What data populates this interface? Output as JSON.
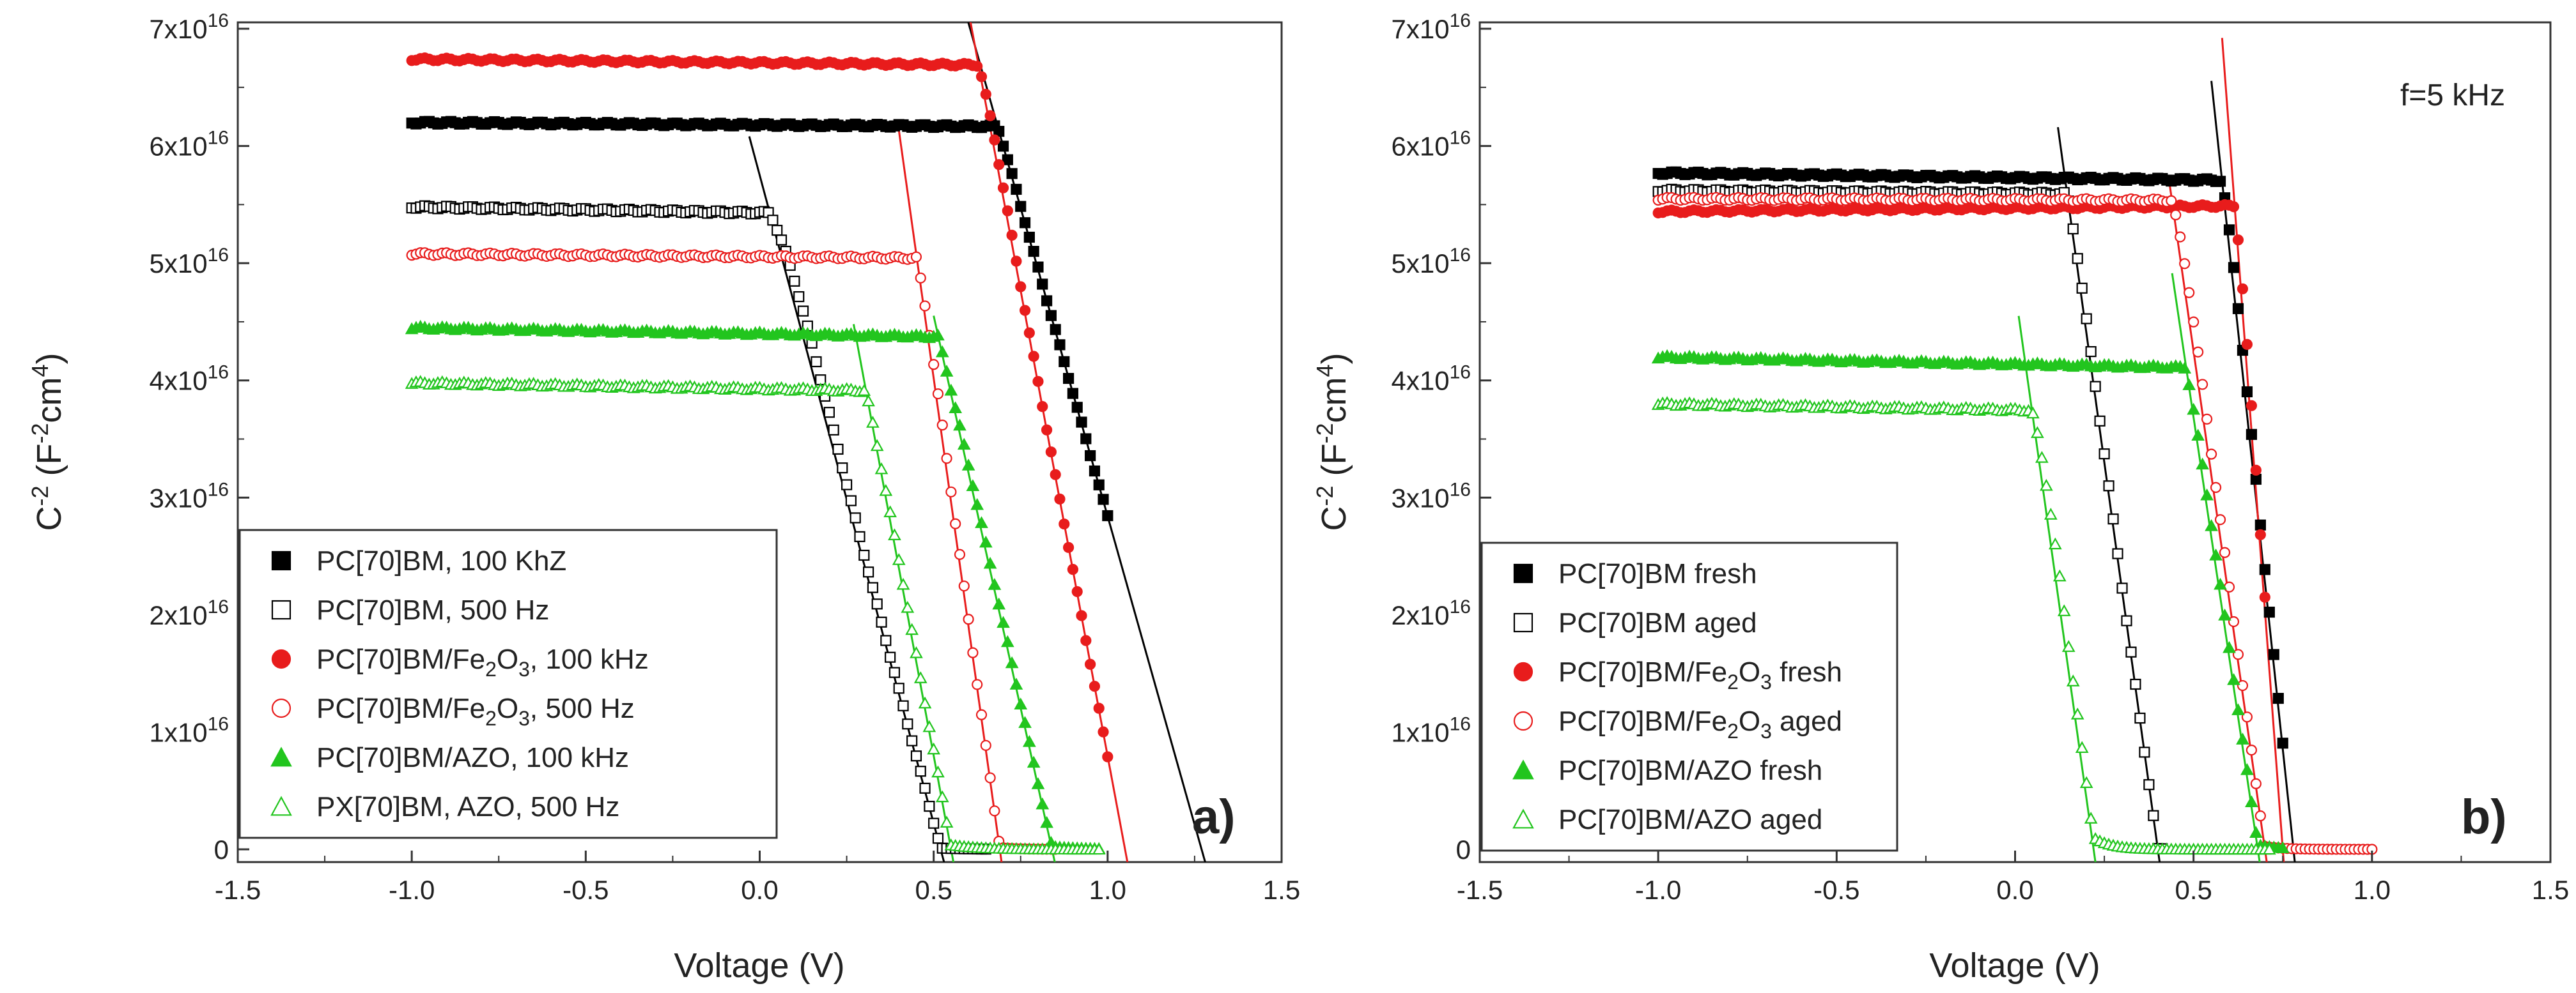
{
  "chart_data": [
    {
      "type": "scatter",
      "panel": "a)",
      "xlabel": "Voltage (V)",
      "ylabel": "C-2 (F-2cm4)",
      "xlim": [
        -1.5,
        1.5
      ],
      "ylim": [
        0,
        7e+16
      ],
      "xticks": [
        "-1.5",
        "-1.0",
        "-0.5",
        "0.0",
        "0.5",
        "1.0",
        "1.5"
      ],
      "yticks": [
        "0",
        "1x1016",
        "2x1016",
        "3x1016",
        "4x1016",
        "5x1016",
        "6x1016",
        "7x1016"
      ],
      "legend_position": "bottom-left",
      "series": [
        {
          "name": "PC[70]BM, 100 KhZ",
          "color": "#000000",
          "marker": "square",
          "filled": true,
          "plateau": 6.2e+16,
          "tilt": 400000000000000.0,
          "knee": 0.57,
          "width": 0.05,
          "x_max": 1.0,
          "fit": [
            [
              0.6,
              7.05e+16
            ],
            [
              1.27,
              0
            ]
          ]
        },
        {
          "name": "PC[70]BM, 500 Hz",
          "color": "#000000",
          "marker": "square",
          "filled": false,
          "plateau": 5.48e+16,
          "tilt": 1000000000000000.0,
          "knee": 0.02,
          "width": 0.08,
          "x_max": 0.65,
          "fit": [
            [
              0.0,
              5.75e+16
            ],
            [
              0.52,
              0
            ]
          ]
        },
        {
          "name": "PC[70]BM/Fe2O3, 100 kHz",
          "color": "#e81c1c",
          "marker": "circle",
          "filled": true,
          "plateau": 6.74e+16,
          "tilt": 600000000000000.0,
          "knee": 0.6,
          "width": 0.04,
          "x_max": 1.0,
          "fit": [
            [
              0.6,
              7.15e+16
            ],
            [
              1.05,
              0
            ]
          ]
        },
        {
          "name": "PC[70]BM/Fe2O3, 500 Hz",
          "color": "#e81c1c",
          "marker": "circle",
          "filled": false,
          "plateau": 5.08e+16,
          "tilt": 500000000000000.0,
          "knee": 0.4,
          "width": 0.05,
          "x_max": 0.85,
          "fit": [
            [
              0.43,
              5.5e+16
            ],
            [
              0.69,
              0
            ]
          ]
        },
        {
          "name": "PC[70]BM/AZO, 100 kHz",
          "color": "#22c51e",
          "marker": "triangle",
          "filled": true,
          "plateau": 4.45e+16,
          "tilt": 1000000000000000.0,
          "knee": 0.32,
          "width": 0.1,
          "x_max": 0.98,
          "fit": [
            [
              0.53,
              4.15e+16
            ],
            [
              0.84,
              0
            ]
          ]
        },
        {
          "name": "PX[70]BM, AZO, 500 Hz",
          "color": "#22c51e",
          "marker": "triangle",
          "filled": false,
          "plateau": 3.98e+16,
          "tilt": 1000000000000000.0,
          "knee": 0.13,
          "width": 0.09,
          "x_max": 0.98,
          "fit": [
            [
              0.3,
              4e+16
            ],
            [
              0.55,
              0
            ]
          ]
        }
      ]
    },
    {
      "type": "scatter",
      "panel": "b)",
      "annotation": "f=5 kHz",
      "xlabel": "Voltage (V)",
      "ylabel": "C-2 (F-2cm4)",
      "xlim": [
        -1.5,
        1.5
      ],
      "ylim": [
        0,
        7e+16
      ],
      "xticks": [
        "-1.5",
        "-1.0",
        "-0.5",
        "0.0",
        "0.5",
        "1.0",
        "1.5"
      ],
      "yticks": [
        "0",
        "1x1016",
        "2x1016",
        "3x1016",
        "4x1016",
        "5x1016",
        "6x1016",
        "7x1016"
      ],
      "legend_position": "bottom-left",
      "series": [
        {
          "name": "PC[70]BM fresh",
          "color": "#000000",
          "marker": "square",
          "filled": true,
          "plateau": 5.77e+16,
          "tilt": 800000000000000.0,
          "knee": 0.55,
          "width": 0.045,
          "x_max": 0.75,
          "fit": [
            [
              0.58,
              5.7e+16
            ],
            [
              0.78,
              0
            ]
          ]
        },
        {
          "name": "PC[70]BM aged",
          "color": "#000000",
          "marker": "square",
          "filled": false,
          "plateau": 5.62e+16,
          "tilt": 500000000000000.0,
          "knee": 0.1,
          "width": 0.045,
          "x_max": 0.42,
          "fit": [
            [
              0.15,
              5.5e+16
            ],
            [
              0.4,
              0
            ]
          ]
        },
        {
          "name": "PC[70]BM/Fe2O3 fresh",
          "color": "#e81c1c",
          "marker": "circle",
          "filled": true,
          "plateau": 5.44e+16,
          "tilt": -600000000000000.0,
          "knee": 0.6,
          "width": 0.03,
          "x_max": 0.7,
          "fit": [
            [
              0.61,
              5.7e+16
            ],
            [
              0.75,
              0
            ]
          ]
        },
        {
          "name": "PC[70]BM/Fe2O3 aged",
          "color": "#e81c1c",
          "marker": "circle",
          "filled": false,
          "plateau": 5.55e+16,
          "tilt": 200000000000000.0,
          "knee": 0.43,
          "width": 0.05,
          "x_max": 1.0,
          "fit": [
            [
              0.46,
              5.1e+16
            ],
            [
              0.7,
              0
            ]
          ]
        },
        {
          "name": "PC[70]BM/AZO fresh",
          "color": "#22c51e",
          "marker": "triangle",
          "filled": true,
          "plateau": 4.2e+16,
          "tilt": 1200000000000000.0,
          "knee": 0.4,
          "width": 0.06,
          "x_max": 0.75,
          "fit": [
            [
              0.47,
              4.3e+16
            ],
            [
              0.68,
              0
            ]
          ]
        },
        {
          "name": "PC[70]BM/AZO aged",
          "color": "#22c51e",
          "marker": "triangle",
          "filled": false,
          "plateau": 3.8e+16,
          "tilt": 1000000000000000.0,
          "knee": 0.04,
          "width": 0.05,
          "x_max": 0.72,
          "fit": [
            [
              0.04,
              3.9e+16
            ],
            [
              0.22,
              0
            ]
          ]
        }
      ]
    }
  ]
}
